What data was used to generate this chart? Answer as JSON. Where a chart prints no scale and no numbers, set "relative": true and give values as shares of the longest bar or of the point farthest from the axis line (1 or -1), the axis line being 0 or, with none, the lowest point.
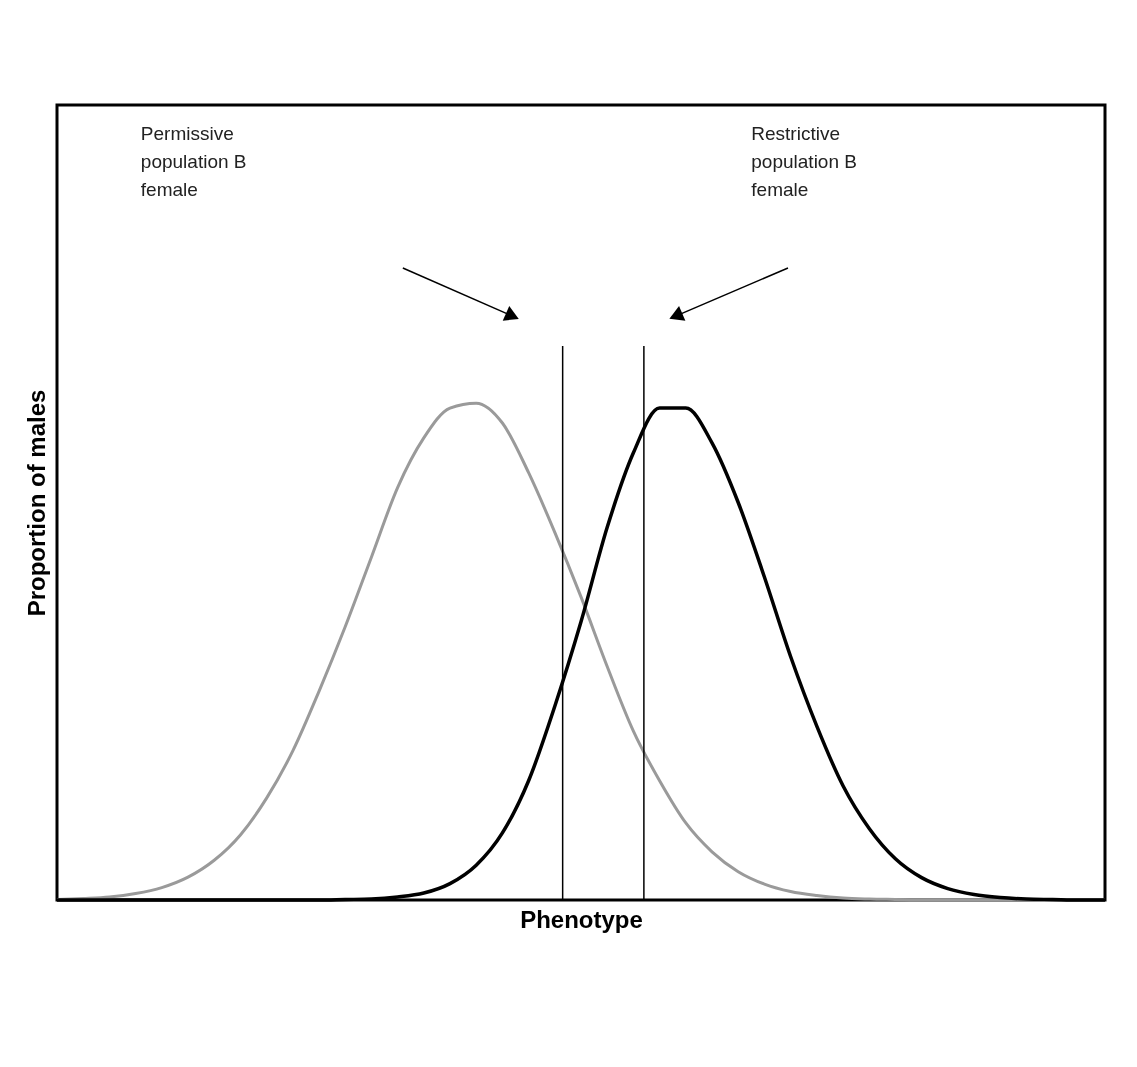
{
  "chart_data": {
    "type": "line",
    "relative": true,
    "xlabel": "Phenotype",
    "ylabel": "Proportion of males",
    "categories": [
      null,
      null,
      null,
      null,
      null,
      null,
      null,
      null,
      null,
      null,
      null,
      null,
      null,
      null,
      null,
      null,
      null,
      null,
      null,
      null,
      null,
      null,
      null,
      null,
      null,
      null,
      null,
      null,
      null,
      null,
      null,
      null,
      null,
      null,
      null,
      null,
      null,
      null,
      null,
      null,
      null
    ],
    "series": [
      {
        "color": "#9a9a9a",
        "values": [
          0.001,
          0.003,
          0.006,
          0.013,
          0.025,
          0.046,
          0.08,
          0.131,
          0.205,
          0.3,
          0.42,
          0.55,
          0.69,
          0.83,
          0.93,
          0.99,
          1,
          0.96,
          0.86,
          0.74,
          0.61,
          0.47,
          0.34,
          0.24,
          0.155,
          0.097,
          0.057,
          0.032,
          0.017,
          0.009,
          0.004,
          0.002,
          0.001,
          0,
          0,
          0,
          0,
          0,
          0,
          0,
          0
        ]
      },
      {
        "color": "#000000",
        "values": [
          0,
          0,
          0,
          0,
          0,
          0,
          0,
          0,
          0,
          0,
          0,
          0.001,
          0.002,
          0.006,
          0.014,
          0.033,
          0.07,
          0.135,
          0.24,
          0.39,
          0.56,
          0.75,
          0.9,
          0.99,
          0.99,
          0.92,
          0.8,
          0.65,
          0.49,
          0.35,
          0.23,
          0.144,
          0.083,
          0.045,
          0.023,
          0.011,
          0.005,
          0.002,
          0.001,
          0,
          0
        ]
      }
    ],
    "annotations": [
      "Permissive population B female",
      "Restrictive population B female"
    ]
  }
}
